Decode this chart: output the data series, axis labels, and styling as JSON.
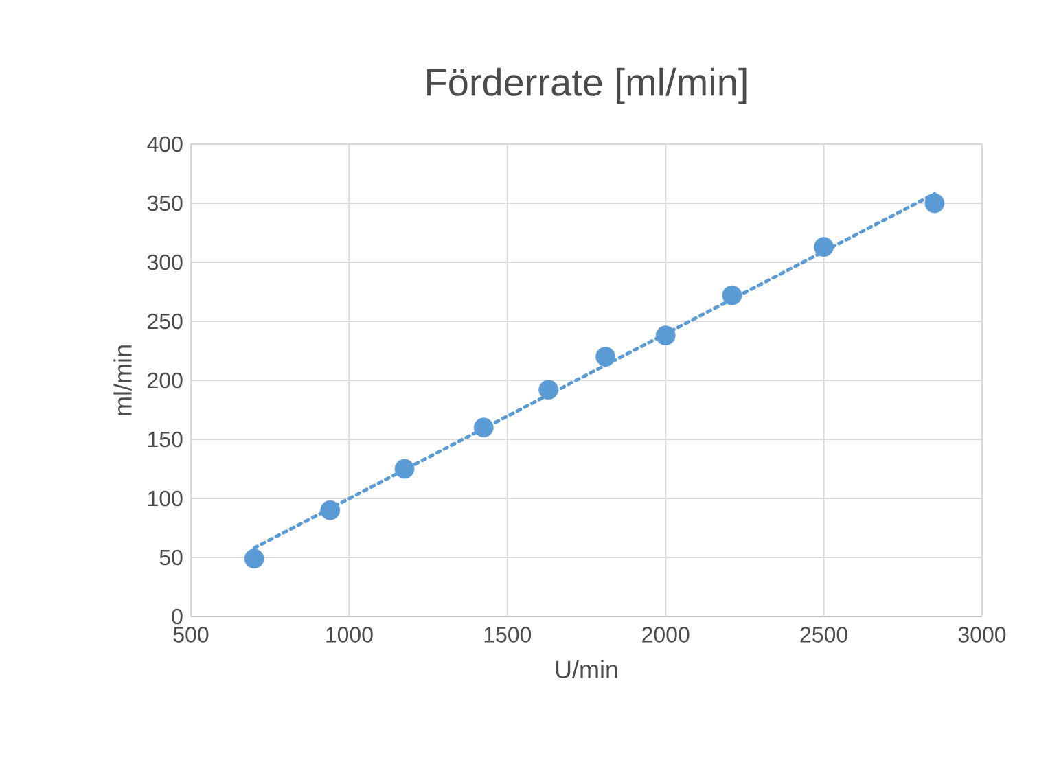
{
  "chart_data": {
    "type": "scatter",
    "title": "Förderrate [ml/min]",
    "xlabel": "U/min",
    "ylabel": "ml/min",
    "x": [
      700,
      940,
      1175,
      1425,
      1630,
      1810,
      2000,
      2210,
      2500,
      2850
    ],
    "series": [
      {
        "color": "#5b9bd5",
        "marker": "circle",
        "values": [
          49,
          90,
          125,
          160,
          192,
          220,
          238,
          272,
          313,
          350
        ]
      },
      {
        "type": "line",
        "color": "#5b9bd5",
        "marker": "none",
        "line_style": "dotted",
        "x": [
          700,
          2850
        ],
        "values": [
          58,
          358
        ]
      }
    ],
    "xlim": [
      500,
      3000
    ],
    "xticks": [
      500,
      1000,
      1500,
      2000,
      2500,
      3000
    ],
    "ylim": [
      0,
      400
    ],
    "yticks": [
      0,
      50,
      100,
      150,
      200,
      250,
      300,
      350,
      400
    ],
    "grid": true
  }
}
